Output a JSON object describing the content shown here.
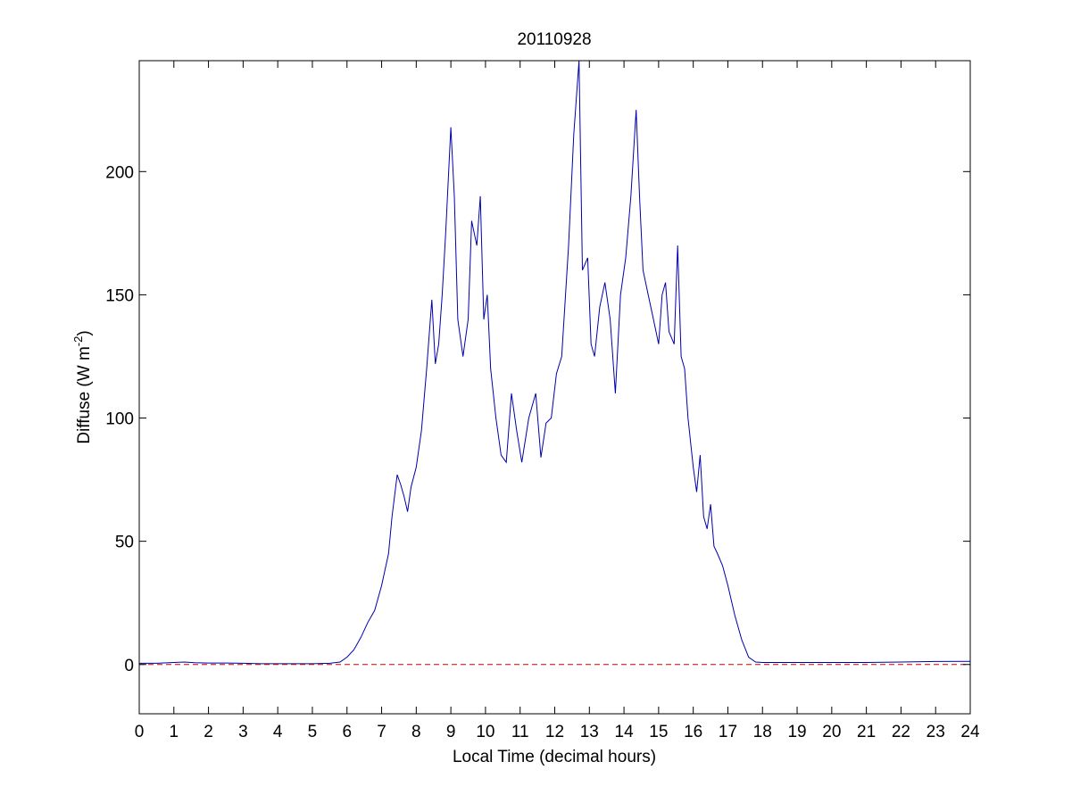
{
  "chart_data": {
    "type": "line",
    "title": "20110928",
    "xlabel": "Local Time (decimal hours)",
    "ylabel_main": "Diffuse (W m",
    "ylabel_sup": "-2",
    "ylabel_close": ")",
    "xlim": [
      0,
      24
    ],
    "ylim": [
      -20,
      245
    ],
    "xticks": [
      0,
      1,
      2,
      3,
      4,
      5,
      6,
      7,
      8,
      9,
      10,
      11,
      12,
      13,
      14,
      15,
      16,
      17,
      18,
      19,
      20,
      21,
      22,
      23,
      24
    ],
    "yticks": [
      0,
      50,
      100,
      150,
      200
    ],
    "grid": false,
    "legend": "none",
    "series": [
      {
        "color": "#0000aa",
        "style": "solid",
        "x": [
          0,
          0.5,
          1,
          1.3,
          1.6,
          2,
          2.5,
          3,
          3.5,
          4,
          4.5,
          5,
          5.5,
          5.8,
          6.0,
          6.2,
          6.4,
          6.6,
          6.8,
          7.0,
          7.2,
          7.3,
          7.45,
          7.55,
          7.65,
          7.75,
          7.85,
          8.0,
          8.15,
          8.3,
          8.45,
          8.55,
          8.65,
          8.75,
          8.85,
          9.0,
          9.1,
          9.2,
          9.35,
          9.5,
          9.6,
          9.75,
          9.85,
          9.95,
          10.05,
          10.15,
          10.3,
          10.45,
          10.6,
          10.75,
          10.9,
          11.05,
          11.25,
          11.45,
          11.6,
          11.75,
          11.9,
          12.05,
          12.2,
          12.4,
          12.55,
          12.7,
          12.8,
          12.95,
          13.05,
          13.15,
          13.3,
          13.45,
          13.6,
          13.75,
          13.9,
          14.05,
          14.2,
          14.35,
          14.45,
          14.55,
          14.7,
          14.85,
          15.0,
          15.1,
          15.2,
          15.3,
          15.45,
          15.55,
          15.65,
          15.75,
          15.85,
          16.0,
          16.1,
          16.2,
          16.3,
          16.4,
          16.5,
          16.6,
          16.7,
          16.85,
          17.0,
          17.2,
          17.4,
          17.6,
          17.8,
          18.0,
          18.2,
          18.5,
          19,
          20,
          21,
          22,
          23,
          24
        ],
        "y": [
          0.5,
          0.5,
          0.8,
          1.0,
          0.7,
          0.6,
          0.6,
          0.5,
          0.3,
          0.3,
          0.3,
          0.3,
          0.5,
          1.0,
          3,
          6,
          11,
          17,
          22,
          32,
          45,
          60,
          77,
          73,
          68,
          62,
          72,
          80,
          95,
          120,
          148,
          122,
          130,
          150,
          175,
          218,
          190,
          140,
          125,
          140,
          180,
          170,
          190,
          140,
          150,
          120,
          100,
          85,
          82,
          110,
          95,
          82,
          100,
          110,
          84,
          98,
          100,
          118,
          125,
          170,
          215,
          245,
          160,
          165,
          130,
          125,
          145,
          155,
          140,
          110,
          150,
          165,
          190,
          225,
          190,
          160,
          150,
          140,
          130,
          150,
          155,
          135,
          130,
          170,
          125,
          120,
          100,
          80,
          70,
          85,
          60,
          55,
          65,
          48,
          45,
          40,
          32,
          20,
          10,
          3,
          1.0,
          0.8,
          0.8,
          0.8,
          0.8,
          0.8,
          0.8,
          1.0,
          1.2,
          1.3
        ]
      },
      {
        "color": "#cc0000",
        "style": "dashed",
        "x": [
          0,
          24
        ],
        "y": [
          0,
          0
        ]
      }
    ]
  }
}
